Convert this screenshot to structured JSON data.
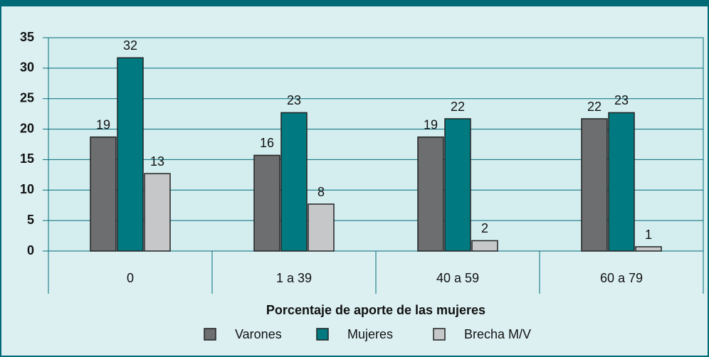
{
  "chart_data": {
    "type": "bar",
    "x_label": "Porcentaje de aporte de las mujeres",
    "categories": [
      "0",
      "1 a 39",
      "40 a 59",
      "60 a 79"
    ],
    "series": [
      {
        "name": "Varones",
        "color": "#6d6e70",
        "values": [
          18.7,
          15.7,
          18.7,
          21.7
        ],
        "value_labels": [
          "19",
          "16",
          "19",
          "22"
        ]
      },
      {
        "name": "Mujeres",
        "color": "#007a80",
        "values": [
          31.7,
          22.7,
          21.7,
          22.7
        ],
        "value_labels": [
          "32",
          "23",
          "22",
          "23"
        ]
      },
      {
        "name": "Brecha M/V",
        "color": "#c6c7c9",
        "values": [
          12.7,
          7.7,
          1.7,
          0.7
        ],
        "value_labels": [
          "13",
          "8",
          "2",
          "1"
        ]
      }
    ],
    "ylim": [
      0,
      35
    ],
    "yticks": [
      0,
      5,
      10,
      15,
      20,
      25,
      30,
      35
    ],
    "grid": true,
    "legend": "bottom"
  }
}
